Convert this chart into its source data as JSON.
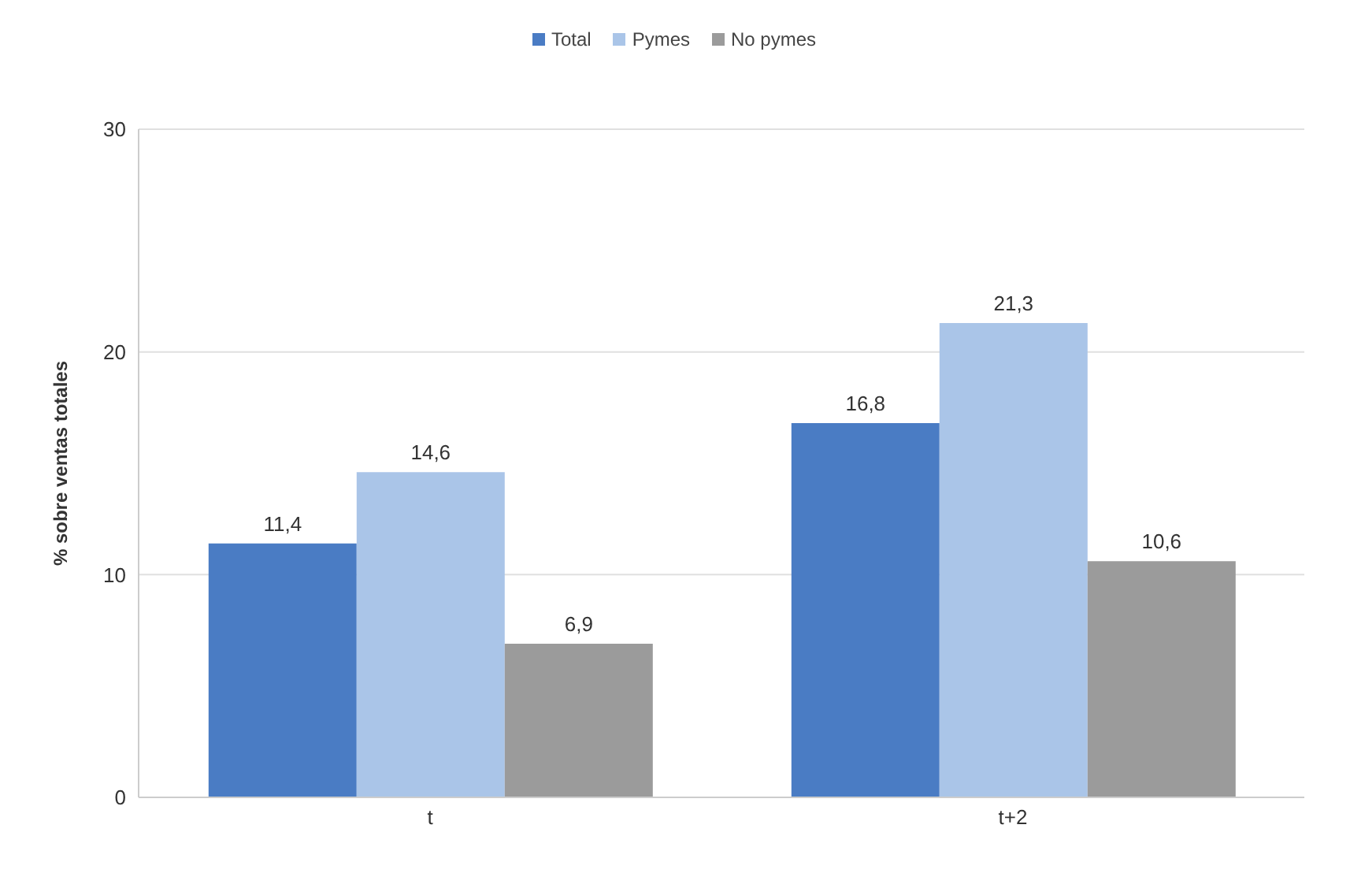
{
  "chart_data": {
    "type": "bar",
    "categories": [
      "t",
      "t+2"
    ],
    "ylabel": "% sobre ventas totales",
    "ylim": [
      0,
      30
    ],
    "yticks": [
      0,
      10,
      20,
      30
    ],
    "grid": "y",
    "legend": "top",
    "series": [
      {
        "name": "Total",
        "color": "#4a7cc4",
        "values": [
          11.4,
          16.8
        ],
        "value_labels": [
          "11,4",
          "16,8"
        ]
      },
      {
        "name": "Pymes",
        "color": "#aac5e8",
        "values": [
          14.6,
          21.3
        ],
        "value_labels": [
          "14,6",
          "21,3"
        ]
      },
      {
        "name": "No pymes",
        "color": "#9b9b9b",
        "values": [
          6.9,
          10.6
        ],
        "value_labels": [
          "6,9",
          "10,6"
        ]
      }
    ]
  }
}
